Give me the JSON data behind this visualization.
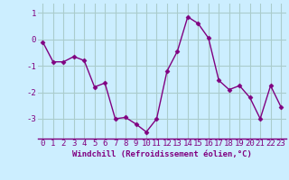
{
  "x": [
    0,
    1,
    2,
    3,
    4,
    5,
    6,
    7,
    8,
    9,
    10,
    11,
    12,
    13,
    14,
    15,
    16,
    17,
    18,
    19,
    20,
    21,
    22,
    23
  ],
  "y": [
    -0.1,
    -0.85,
    -0.85,
    -0.65,
    -0.8,
    -1.8,
    -1.65,
    -3.0,
    -2.95,
    -3.2,
    -3.5,
    -3.0,
    -1.2,
    -0.45,
    0.85,
    0.6,
    0.05,
    -1.55,
    -1.9,
    -1.75,
    -2.2,
    -3.0,
    -1.75,
    -2.55
  ],
  "line_color": "#800080",
  "marker": "D",
  "marker_size": 2.5,
  "bg_color": "#cceeff",
  "grid_color": "#aacccc",
  "xlabel": "Windchill (Refroidissement éolien,°C)",
  "xlim": [
    -0.5,
    23.5
  ],
  "ylim": [
    -3.75,
    1.35
  ],
  "yticks": [
    -3,
    -2,
    -1,
    0,
    1
  ],
  "xticks": [
    0,
    1,
    2,
    3,
    4,
    5,
    6,
    7,
    8,
    9,
    10,
    11,
    12,
    13,
    14,
    15,
    16,
    17,
    18,
    19,
    20,
    21,
    22,
    23
  ],
  "xlabel_fontsize": 6.5,
  "tick_fontsize": 6.5,
  "line_width": 1.0
}
